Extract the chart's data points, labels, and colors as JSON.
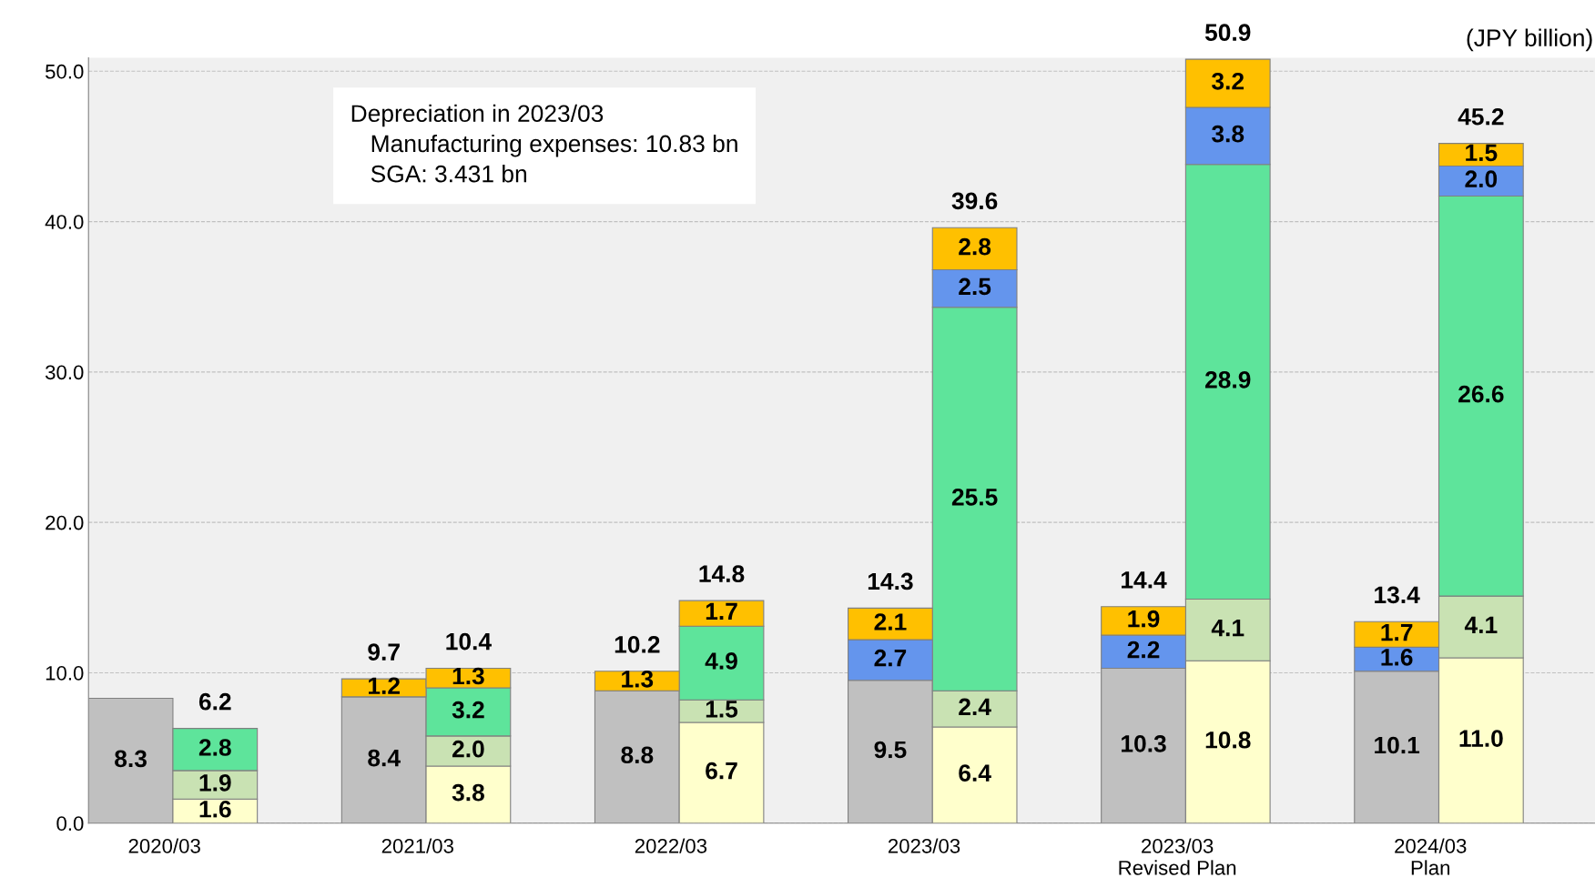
{
  "chart_data": {
    "type": "bar",
    "stacked": true,
    "categories": [
      "2020/03",
      null,
      null,
      "2021/03",
      null,
      null,
      "2022/03",
      null,
      null,
      "2023/03",
      null,
      null,
      "2023/03\nRevised Plan",
      null,
      null,
      "2024/03\nPlan",
      null
    ],
    "series": [
      {
        "color": "#c0c0c0",
        "values": [
          8.3,
          null,
          null,
          8.4,
          null,
          null,
          8.8,
          null,
          null,
          9.5,
          null,
          null,
          10.3,
          null,
          null,
          10.1,
          null
        ],
        "value_labels": [
          "8.3",
          null,
          null,
          "8.4",
          null,
          null,
          "8.8",
          null,
          null,
          "9.5",
          null,
          null,
          "10.3",
          null,
          null,
          "10.1",
          null
        ]
      },
      {
        "color": "#ffffcc",
        "values": [
          null,
          1.6,
          null,
          null,
          3.8,
          null,
          null,
          6.7,
          null,
          null,
          6.4,
          null,
          null,
          10.8,
          null,
          null,
          11.0
        ],
        "value_labels": [
          null,
          "1.6",
          null,
          null,
          "3.8",
          null,
          null,
          "6.7",
          null,
          null,
          "6.4",
          null,
          null,
          "10.8",
          null,
          null,
          "11.0"
        ]
      },
      {
        "color": "#c9e2b3",
        "values": [
          null,
          1.9,
          null,
          null,
          2.0,
          null,
          null,
          1.5,
          null,
          null,
          2.4,
          null,
          null,
          4.1,
          null,
          null,
          4.1
        ],
        "value_labels": [
          null,
          "1.9",
          null,
          null,
          "2.0",
          null,
          null,
          "1.5",
          null,
          null,
          "2.4",
          null,
          null,
          "4.1",
          null,
          null,
          "4.1"
        ]
      },
      {
        "color": "#5ee49b",
        "values": [
          null,
          2.8,
          null,
          null,
          3.2,
          null,
          null,
          4.9,
          null,
          null,
          25.5,
          null,
          null,
          28.9,
          null,
          null,
          26.6
        ],
        "value_labels": [
          null,
          "2.8",
          null,
          null,
          "3.2",
          null,
          null,
          "4.9",
          null,
          null,
          "25.5",
          null,
          null,
          "28.9",
          null,
          null,
          "26.6"
        ]
      },
      {
        "color": "#6495ed",
        "values": [
          null,
          null,
          null,
          null,
          null,
          null,
          null,
          null,
          null,
          2.7,
          2.5,
          null,
          2.2,
          3.8,
          null,
          1.6,
          2.0
        ],
        "value_labels": [
          null,
          null,
          null,
          null,
          null,
          null,
          null,
          null,
          null,
          "2.7",
          "2.5",
          null,
          "2.2",
          "3.8",
          null,
          "1.6",
          "2.0"
        ]
      },
      {
        "color": "#ffc000",
        "values": [
          null,
          null,
          null,
          1.2,
          1.3,
          null,
          1.3,
          1.7,
          null,
          2.1,
          2.8,
          null,
          1.9,
          3.2,
          null,
          1.7,
          1.5
        ],
        "value_labels": [
          null,
          null,
          null,
          "1.2",
          "1.3",
          null,
          "1.3",
          "1.7",
          null,
          "2.1",
          "2.8",
          null,
          "1.9",
          "3.2",
          null,
          "1.7",
          "1.5"
        ]
      }
    ],
    "totals": [
      null,
      "6.2",
      null,
      "9.7",
      "10.4",
      null,
      "10.2",
      "14.8",
      null,
      "14.3",
      "39.6",
      null,
      "14.4",
      "50.9",
      null,
      "13.4",
      "45.2"
    ],
    "ylim": [
      0,
      50.9
    ],
    "yticks": [
      {
        "value": 0,
        "label": "0.0"
      },
      {
        "value": 10,
        "label": "10.0"
      },
      {
        "value": 20,
        "label": "20.0"
      },
      {
        "value": 30,
        "label": "30.0"
      },
      {
        "value": 40,
        "label": "40.0"
      },
      {
        "value": 50,
        "label": "50.0"
      }
    ],
    "grid": "y",
    "annotations": [
      "Depreciation in 2023/03\n   Manufacturing expenses: 10.83 bn\n   SGA: 3.431 bn",
      "(JPY billion)"
    ]
  }
}
